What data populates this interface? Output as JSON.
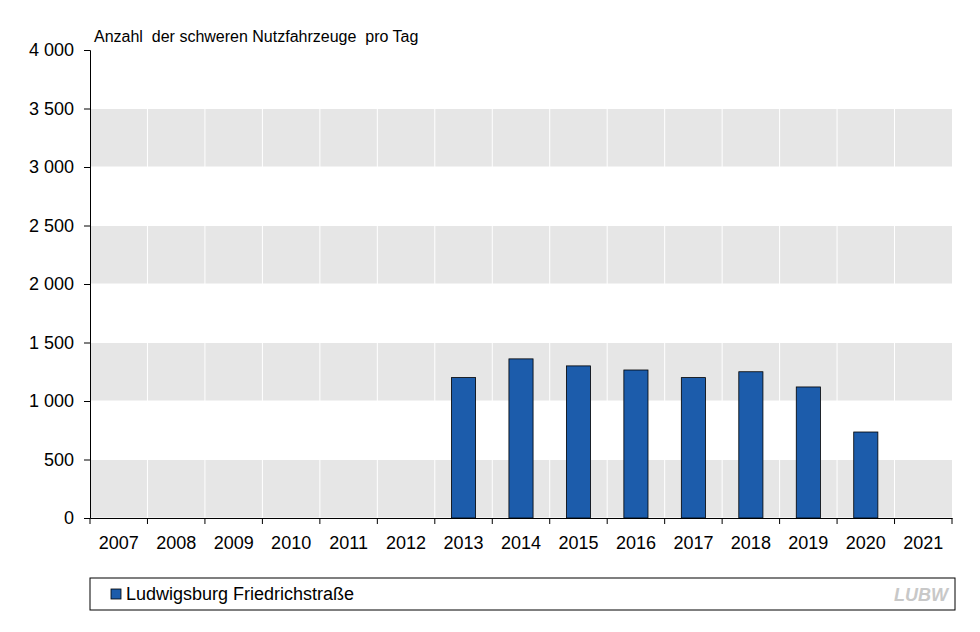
{
  "chart_data": {
    "type": "bar",
    "title": "Anzahl  der schweren Nutzfahrzeuge  pro Tag",
    "categories": [
      "2007",
      "2008",
      "2009",
      "2010",
      "2011",
      "2012",
      "2013",
      "2014",
      "2015",
      "2016",
      "2017",
      "2018",
      "2019",
      "2020",
      "2021"
    ],
    "series": [
      {
        "name": "Ludwigsburg Friedrichstraße",
        "color": "#1c5cab",
        "values": [
          null,
          null,
          null,
          null,
          null,
          null,
          1200,
          1360,
          1300,
          1265,
          1200,
          1250,
          1120,
          735,
          null
        ]
      }
    ],
    "ylim": [
      0,
      4000
    ],
    "yticks": [
      0,
      500,
      {
        "value": 1000,
        "label": "1 000"
      },
      {
        "value": 1500,
        "label": "1 500"
      },
      {
        "value": 2000,
        "label": "2 000"
      },
      {
        "value": 2500,
        "label": "2 500"
      },
      {
        "value": 3000,
        "label": "3 000"
      },
      {
        "value": 3500,
        "label": "3 500"
      },
      {
        "value": 4000,
        "label": "4 000"
      }
    ],
    "grid": true,
    "legend": "bottom",
    "annotations": [
      "LUBW"
    ]
  }
}
